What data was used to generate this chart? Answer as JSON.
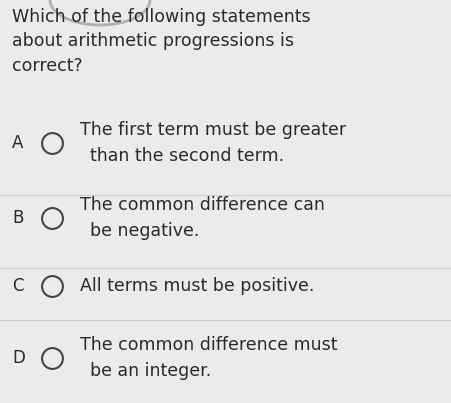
{
  "background_color": "#ebebeb",
  "question": "Which of the following statements\nabout arithmetic progressions is\ncorrect?",
  "question_fontsize": 12.5,
  "options": [
    {
      "label": "A",
      "line1": "The first term must be greater",
      "line2": "than the second term."
    },
    {
      "label": "B",
      "line1": "The common difference can",
      "line2": "be negative."
    },
    {
      "label": "C",
      "line1": "All terms must be positive.",
      "line2": null
    },
    {
      "label": "D",
      "line1": "The common difference must",
      "line2": "be an integer."
    }
  ],
  "option_fontsize": 12.5,
  "label_fontsize": 12.0,
  "text_color": "#2a2a2a",
  "circle_edge_color": "#444444",
  "circle_face_color": "#ebebeb",
  "circle_linewidth": 1.5,
  "divider_color": "#cccccc",
  "divider_linewidth": 0.7,
  "top_gray_color": "#b0b0b0",
  "right_border_color": "#5555aa"
}
